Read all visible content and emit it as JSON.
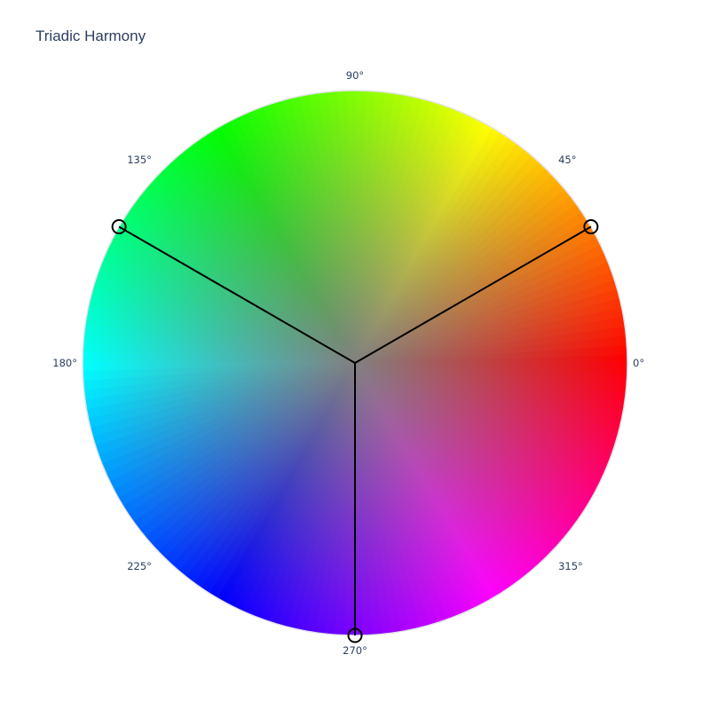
{
  "chart_data": {
    "type": "scatter",
    "subtype": "polar-color-wheel",
    "title": "Triadic Harmony",
    "angular_axis": {
      "direction": "counterclockwise",
      "rotation_zero": "east",
      "ticks": [
        0,
        45,
        90,
        135,
        180,
        225,
        270,
        315
      ],
      "tick_labels": [
        "0°",
        "45°",
        "90°",
        "135°",
        "180°",
        "225°",
        "270°",
        "315°"
      ]
    },
    "radial_range": [
      0,
      1
    ],
    "grid": false,
    "legend": "none",
    "background": "hue-saturation wheel (hue by angle, saturation by radius)",
    "series": [
      {
        "mode": "lines+markers",
        "line_color": "#000000",
        "marker_color": "#000000",
        "points": [
          {
            "theta": 30,
            "r": 1
          },
          {
            "theta": 150,
            "r": 1
          },
          {
            "theta": 270,
            "r": 1
          }
        ]
      }
    ]
  }
}
